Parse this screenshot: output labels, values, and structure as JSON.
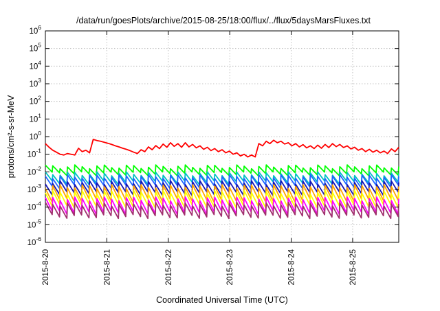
{
  "chart_data": {
    "type": "line",
    "title": "/data/run/goesPlots/archive/2015-08-25/18:00/flux/../flux/5daysMarsFluxes.txt",
    "xlabel": "Coordinated Universal Time (UTC)",
    "ylabel": "protons/cm²-s-sr-MeV",
    "y_scale": "log",
    "ylim": [
      1e-06,
      1000000.0
    ],
    "y_ticks": [
      {
        "value": 1e-06,
        "label": "10-6",
        "base": "10",
        "exp": "-6"
      },
      {
        "value": 1e-05,
        "label": "10-5",
        "base": "10",
        "exp": "-5"
      },
      {
        "value": 0.0001,
        "label": "10-4",
        "base": "10",
        "exp": "-4"
      },
      {
        "value": 0.001,
        "label": "10-3",
        "base": "10",
        "exp": "-3"
      },
      {
        "value": 0.01,
        "label": "10-2",
        "base": "10",
        "exp": "-2"
      },
      {
        "value": 0.1,
        "label": "10-1",
        "base": "10",
        "exp": "-1"
      },
      {
        "value": 1,
        "label": "100",
        "base": "10",
        "exp": "0"
      },
      {
        "value": 10,
        "label": "101",
        "base": "10",
        "exp": "1"
      },
      {
        "value": 100,
        "label": "102",
        "base": "10",
        "exp": "2"
      },
      {
        "value": 1000,
        "label": "103",
        "base": "10",
        "exp": "3"
      },
      {
        "value": 10000,
        "label": "104",
        "base": "10",
        "exp": "4"
      },
      {
        "value": 100000,
        "label": "105",
        "base": "10",
        "exp": "5"
      },
      {
        "value": 1000000,
        "label": "106",
        "base": "10",
        "exp": "6"
      }
    ],
    "x_ticks": [
      "2015-8-20",
      "2015-8-21",
      "2015-8-22",
      "2015-8-23",
      "2015-8-24",
      "2015-8-25"
    ],
    "x_range": [
      "2015-08-20T00:00",
      "2015-08-25T18:00"
    ],
    "grid": true,
    "legend": "none",
    "series": [
      {
        "color": "#ff0000",
        "values": [
          0.4,
          0.25,
          0.17,
          0.13,
          0.1,
          0.09,
          0.11,
          0.1,
          0.09,
          0.22,
          0.14,
          0.17,
          0.12,
          0.7,
          0.6,
          0.55,
          0.48,
          0.42,
          0.36,
          0.3,
          0.26,
          0.22,
          0.19,
          0.16,
          0.13,
          0.11,
          0.18,
          0.14,
          0.26,
          0.18,
          0.31,
          0.21,
          0.38,
          0.25,
          0.45,
          0.28,
          0.4,
          0.25,
          0.45,
          0.26,
          0.36,
          0.23,
          0.3,
          0.19,
          0.25,
          0.16,
          0.21,
          0.14,
          0.18,
          0.12,
          0.15,
          0.1,
          0.12,
          0.08,
          0.1,
          0.07,
          0.09,
          0.07,
          0.4,
          0.3,
          0.55,
          0.4,
          0.62,
          0.45,
          0.55,
          0.38,
          0.45,
          0.3,
          0.4,
          0.26,
          0.35,
          0.23,
          0.3,
          0.21,
          0.33,
          0.22,
          0.36,
          0.24,
          0.4,
          0.27,
          0.36,
          0.24,
          0.3,
          0.2,
          0.25,
          0.17,
          0.21,
          0.14,
          0.19,
          0.13,
          0.17,
          0.12,
          0.15,
          0.11,
          0.2,
          0.14,
          0.25
        ]
      },
      {
        "color": "#00ff00",
        "pattern": {
          "peak": 0.02,
          "trough": 0.008
        }
      },
      {
        "color": "#00c2c2",
        "pattern": {
          "peak": 0.008,
          "trough": 0.0025
        }
      },
      {
        "color": "#1e64ff",
        "pattern": {
          "peak": 0.0055,
          "trough": 0.0015
        }
      },
      {
        "color": "#1414b4",
        "pattern": {
          "peak": 0.0025,
          "trough": 0.0006
        }
      },
      {
        "color": "#ffa500",
        "pattern": {
          "peak": 0.0015,
          "trough": 0.00025
        }
      },
      {
        "color": "#ffff00",
        "pattern": {
          "peak": 0.0007,
          "trough": 0.00012
        }
      },
      {
        "color": "#ff00ff",
        "pattern": {
          "peak": 0.0003,
          "trough": 5e-05
        }
      },
      {
        "color": "#a0306e",
        "pattern": {
          "peak": 0.00015,
          "trough": 3e-05
        }
      }
    ],
    "cycles": 48
  }
}
